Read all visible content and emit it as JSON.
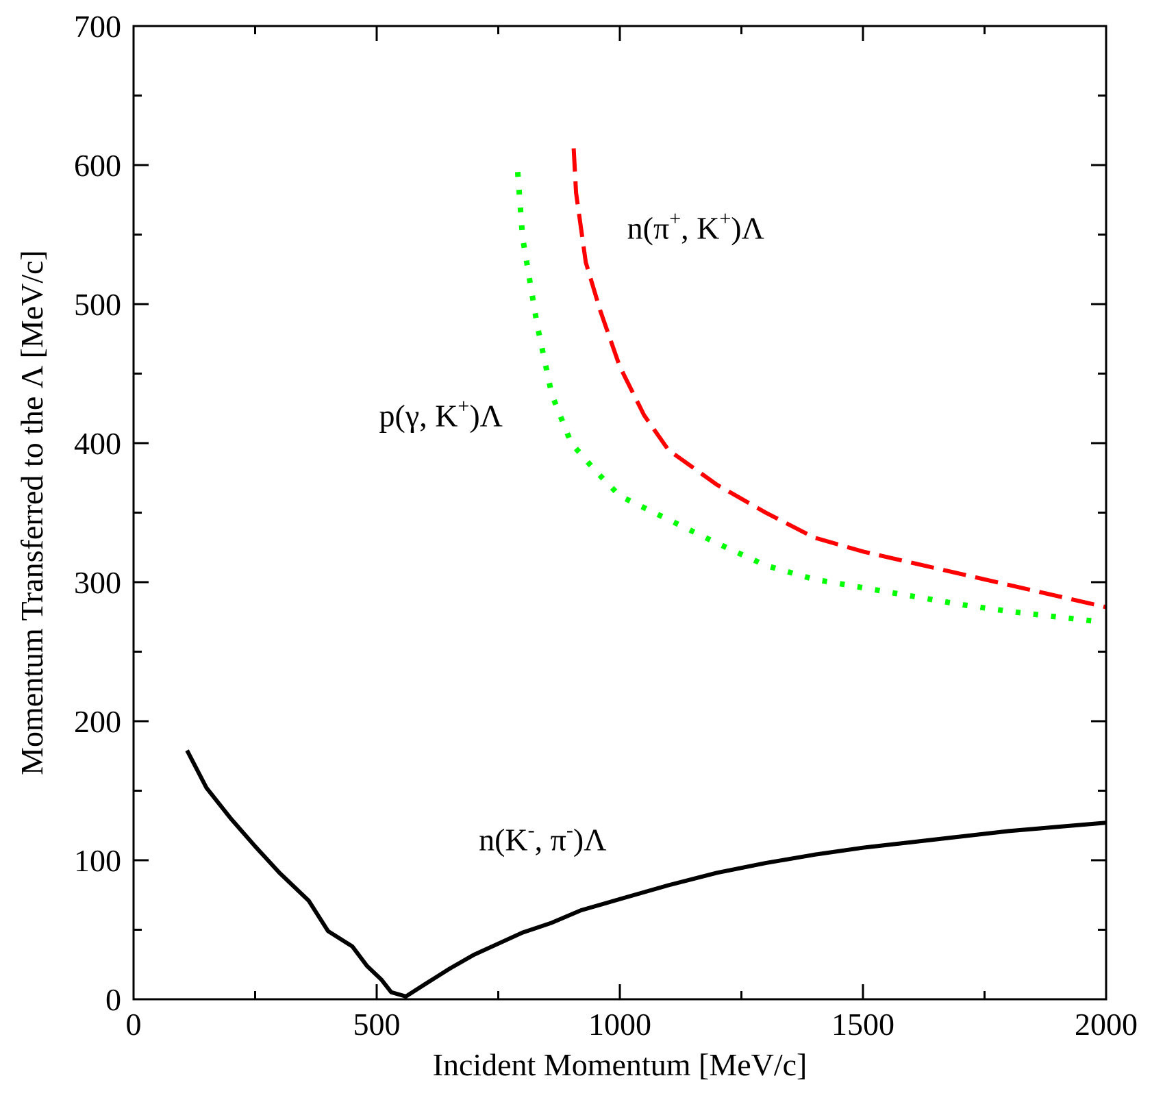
{
  "chart_data": {
    "type": "line",
    "title": "",
    "xlabel": "Incident Momentum [MeV/c]",
    "ylabel": "Momentum Transferred to the Λ [MeV/c]",
    "xlim": [
      0,
      2000
    ],
    "ylim": [
      0,
      700
    ],
    "xticks": [
      0,
      500,
      1000,
      1500,
      2000
    ],
    "xtick_labels": [
      "0",
      "500",
      "1000",
      "1500",
      "2000"
    ],
    "yticks": [
      0,
      100,
      200,
      300,
      400,
      500,
      600,
      700
    ],
    "ytick_labels": [
      "0",
      "100",
      "200",
      "300",
      "400",
      "500",
      "600",
      "700"
    ],
    "grid": false,
    "series": [
      {
        "name": "n(K-, π-)Λ",
        "color": "#000000",
        "style": "solid",
        "x": [
          110,
          150,
          200,
          250,
          300,
          360,
          400,
          450,
          480,
          510,
          530,
          560,
          600,
          650,
          700,
          750,
          800,
          860,
          920,
          1000,
          1100,
          1200,
          1300,
          1400,
          1500,
          1600,
          1700,
          1800,
          1900,
          2000
        ],
        "y": [
          179,
          152,
          130,
          110,
          91,
          71,
          49,
          38,
          24,
          14,
          5,
          2,
          11,
          22,
          32,
          40,
          48,
          55,
          64,
          72,
          82,
          91,
          98,
          104,
          109,
          113,
          117,
          121,
          124,
          127
        ]
      },
      {
        "name": "p(γ, K+)Λ",
        "color": "#00ff00",
        "style": "dotted",
        "x": [
          790,
          800,
          830,
          860,
          900,
          950,
          1000,
          1100,
          1200,
          1300,
          1400,
          1500,
          1600,
          1700,
          1800,
          1900,
          1975
        ],
        "y": [
          595,
          548,
          485,
          435,
          400,
          380,
          362,
          345,
          328,
          312,
          302,
          296,
          290,
          284,
          279,
          275,
          272
        ]
      },
      {
        "name": "n(π+, K+)Λ",
        "color": "#ff0000",
        "style": "dashed",
        "x": [
          905,
          910,
          930,
          960,
          1000,
          1050,
          1100,
          1200,
          1300,
          1400,
          1500,
          1600,
          1700,
          1800,
          1900,
          2000
        ],
        "y": [
          612,
          580,
          530,
          495,
          455,
          420,
          395,
          370,
          350,
          332,
          322,
          314,
          306,
          298,
          290,
          282
        ]
      }
    ],
    "annotations": [
      {
        "name": "n(π+, K+)Λ",
        "base": "n(π",
        "sup1": "+",
        "mid": ", K",
        "sup2": "+",
        "end": ")Λ"
      },
      {
        "name": "p(γ, K+)Λ",
        "base": "p(γ, K",
        "sup1": "+",
        "mid": "",
        "sup2": "",
        "end": ")Λ"
      },
      {
        "name": "n(K-, π-)Λ",
        "base": "n(K",
        "sup1": "-",
        "mid": ", π",
        "sup2": "-",
        "end": ")Λ"
      }
    ]
  }
}
